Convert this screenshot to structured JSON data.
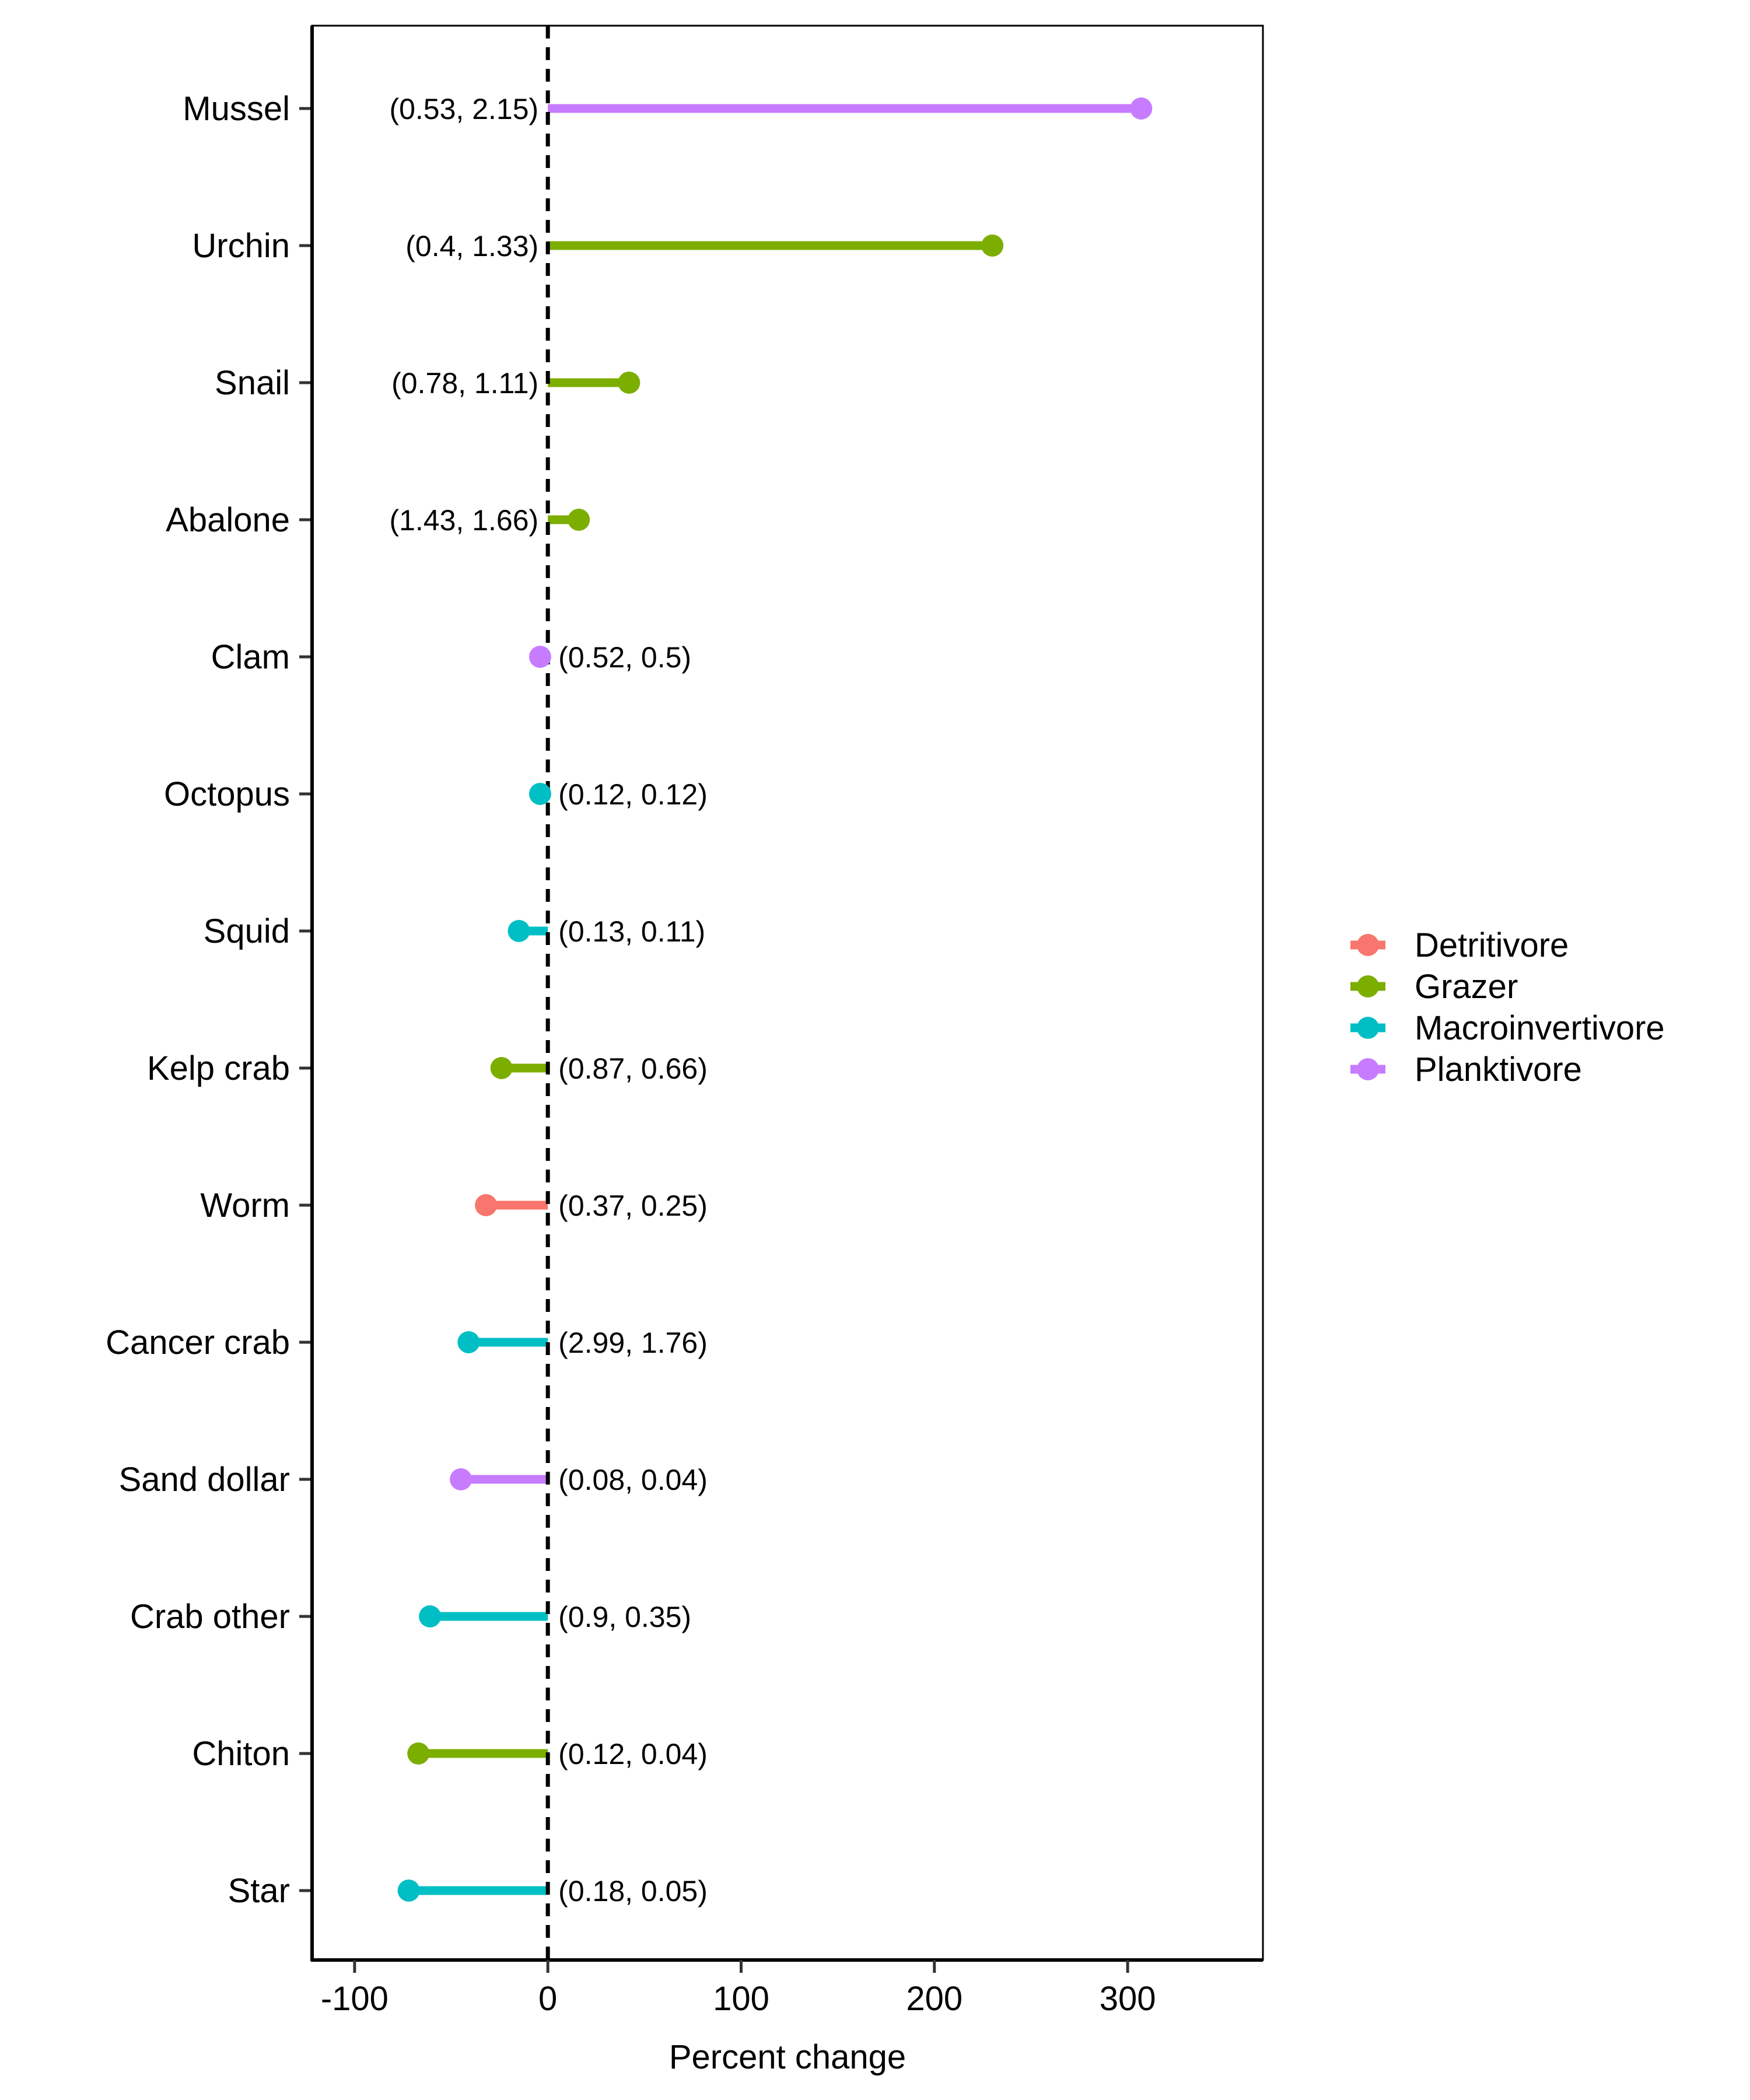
{
  "chart_data": {
    "type": "lollipop",
    "title": "",
    "xlabel": "Percent change",
    "ylabel": "",
    "xlim": [
      -122,
      370
    ],
    "xticks": [
      -100,
      0,
      100,
      200,
      300
    ],
    "xtick_labels": [
      "-100",
      "0",
      "100",
      "200",
      "300"
    ],
    "reference_line": 0,
    "grid": false,
    "legend": {
      "position": "right",
      "entries": [
        {
          "name": "Detritivore",
          "color": "#F8766D"
        },
        {
          "name": "Grazer",
          "color": "#7CAE00"
        },
        {
          "name": "Macroinvertivore",
          "color": "#00BFC4"
        },
        {
          "name": "Planktivore",
          "color": "#C77CFF"
        }
      ]
    },
    "points": [
      {
        "category": "Mussel",
        "value": 307,
        "group": "Planktivore",
        "annotation": "(0.53, 2.15)"
      },
      {
        "category": "Urchin",
        "value": 230,
        "group": "Grazer",
        "annotation": "(0.4, 1.33)"
      },
      {
        "category": "Snail",
        "value": 42,
        "group": "Grazer",
        "annotation": "(0.78, 1.11)"
      },
      {
        "category": "Abalone",
        "value": 16,
        "group": "Grazer",
        "annotation": "(1.43, 1.66)"
      },
      {
        "category": "Clam",
        "value": -4,
        "group": "Planktivore",
        "annotation": "(0.52, 0.5)"
      },
      {
        "category": "Octopus",
        "value": -4,
        "group": "Macroinvertivore",
        "annotation": "(0.12, 0.12)"
      },
      {
        "category": "Squid",
        "value": -15,
        "group": "Macroinvertivore",
        "annotation": "(0.13, 0.11)"
      },
      {
        "category": "Kelp crab",
        "value": -24,
        "group": "Grazer",
        "annotation": "(0.87, 0.66)"
      },
      {
        "category": "Worm",
        "value": -32,
        "group": "Detritivore",
        "annotation": "(0.37, 0.25)"
      },
      {
        "category": "Cancer crab",
        "value": -41,
        "group": "Macroinvertivore",
        "annotation": "(2.99, 1.76)"
      },
      {
        "category": "Sand dollar",
        "value": -45,
        "group": "Planktivore",
        "annotation": "(0.08, 0.04)"
      },
      {
        "category": "Crab other",
        "value": -61,
        "group": "Macroinvertivore",
        "annotation": "(0.9, 0.35)"
      },
      {
        "category": "Chiton",
        "value": -67,
        "group": "Grazer",
        "annotation": "(0.12, 0.04)"
      },
      {
        "category": "Star",
        "value": -72,
        "group": "Macroinvertivore",
        "annotation": "(0.18, 0.05)"
      }
    ]
  }
}
